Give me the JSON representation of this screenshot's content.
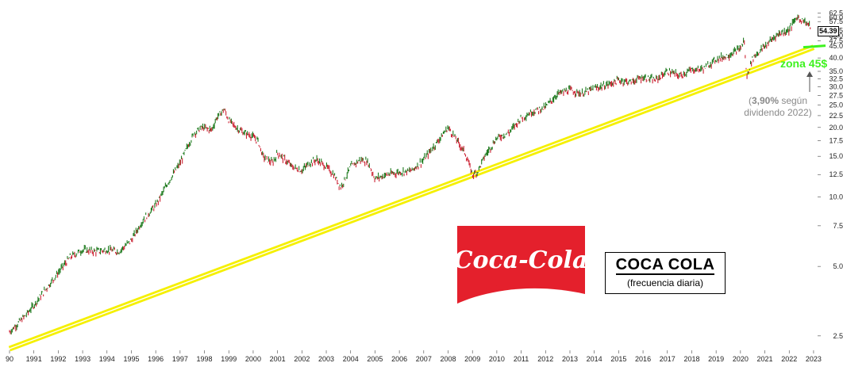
{
  "chart_data": {
    "type": "line",
    "scale": "log",
    "frequency": "daily",
    "ylim": [
      2.2,
      68
    ],
    "xlim": [
      1990.0,
      2023.1
    ],
    "y_ticks": [
      "2.5",
      "5.0",
      "7.5",
      "10.0",
      "12.5",
      "15.0",
      "17.5",
      "20.0",
      "22.5",
      "25.0",
      "27.5",
      "30.0",
      "32.5",
      "35.0",
      "40.0",
      "45.0",
      "47.5",
      "50.0",
      "52.5",
      "57.5",
      "60.0",
      "62.5"
    ],
    "x_ticks": [
      "90",
      "1991",
      "1992",
      "1993",
      "1994",
      "1995",
      "1996",
      "1997",
      "1998",
      "1999",
      "2000",
      "2001",
      "2002",
      "2003",
      "2004",
      "2005",
      "2006",
      "2007",
      "2008",
      "2009",
      "2010",
      "2011",
      "2012",
      "2013",
      "2014",
      "2015",
      "2016",
      "2017",
      "2018",
      "2019",
      "2020",
      "2021",
      "2022",
      "2023"
    ],
    "last_price": "54.39",
    "series": [
      {
        "x": [
          1990.0,
          1990.3,
          1990.7,
          1991.0,
          1991.5,
          1992.0,
          1992.5,
          1993.0,
          1993.5,
          1994.0,
          1994.5,
          1995.0,
          1995.5,
          1996.0,
          1996.5,
          1997.0,
          1997.3,
          1997.6,
          1997.9,
          1998.3,
          1998.5,
          1998.8,
          1999.0,
          1999.3,
          1999.6,
          1999.9,
          2000.2,
          2000.4,
          2000.8,
          2001.0,
          2001.3,
          2001.6,
          2002.0,
          2002.3,
          2002.6,
          2003.0,
          2003.3,
          2003.6,
          2004.0,
          2004.4,
          2004.7,
          2005.0,
          2005.5,
          2006.0,
          2006.5,
          2007.0,
          2007.5,
          2008.0,
          2008.3,
          2008.7,
          2009.0,
          2009.2,
          2009.5,
          2010.0,
          2010.5,
          2011.0,
          2011.5,
          2012.0,
          2012.5,
          2013.0,
          2013.5,
          2014.0,
          2014.5,
          2015.0,
          2015.5,
          2016.0,
          2016.5,
          2017.0,
          2017.5,
          2018.0,
          2018.5,
          2019.0,
          2019.5,
          2020.0,
          2020.15,
          2020.25,
          2020.5,
          2021.0,
          2021.5,
          2022.0,
          2022.3,
          2022.6,
          2022.9
        ],
        "y": [
          2.6,
          2.8,
          3.1,
          3.4,
          4.0,
          4.7,
          5.5,
          5.9,
          5.8,
          5.9,
          5.8,
          6.5,
          8.0,
          9.2,
          11.5,
          14.0,
          16.5,
          19.0,
          20.0,
          19.5,
          22.0,
          24.0,
          21.5,
          20.0,
          19.0,
          18.5,
          17.5,
          15.0,
          14.0,
          15.5,
          14.5,
          13.5,
          13.0,
          14.0,
          14.5,
          13.5,
          12.5,
          11.0,
          13.5,
          14.5,
          14.2,
          12.0,
          12.5,
          12.8,
          13.0,
          14.5,
          17.0,
          20.0,
          18.0,
          15.5,
          12.5,
          12.8,
          15.0,
          18.0,
          19.0,
          22.0,
          23.5,
          24.5,
          28.0,
          29.0,
          28.0,
          29.5,
          30.5,
          32.0,
          31.5,
          33.0,
          32.0,
          35.0,
          33.5,
          35.5,
          36.0,
          39.5,
          41.0,
          44.0,
          48.0,
          33.0,
          40.0,
          45.0,
          50.5,
          53.0,
          60.0,
          58.0,
          54.4
        ]
      }
    ],
    "trendline": {
      "from_x": 1990.0,
      "from_y": 2.2,
      "to_x": 2023.0,
      "to_y": 44.5
    }
  },
  "annotations": {
    "title": "COCA COLA",
    "subtitle": "(frecuencia diaria)",
    "zona": "zona 45$",
    "dividend_pct": "3,90%",
    "dividend_line1_rest": " según",
    "dividend_line2": "dividendo 2022)",
    "paren_open": "(",
    "logo_text": "Coca-Cola"
  },
  "colors": {
    "up": "#1e7a1e",
    "down": "#cc2233",
    "trendline": "#f5f000",
    "logo_red": "#e4202c",
    "zona": "#3ef21f"
  }
}
